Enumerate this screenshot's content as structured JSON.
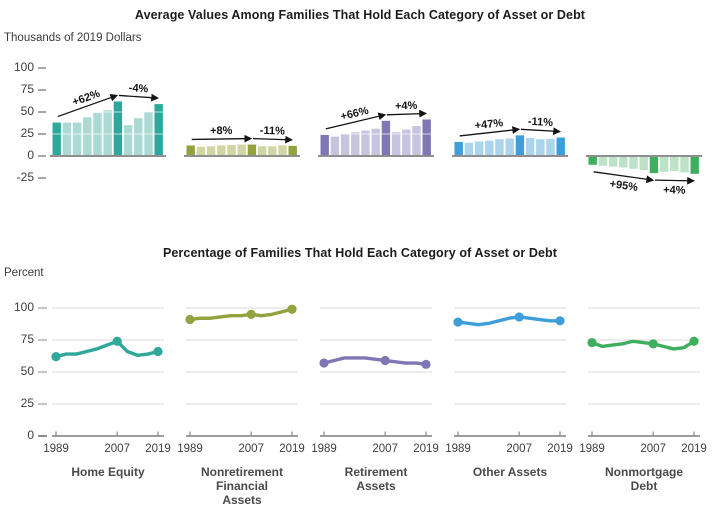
{
  "accent_colors": {
    "teal": "#2fa79b",
    "teal_light": "#abd9d3",
    "olive": "#93a13f",
    "olive_light": "#cfd6a2",
    "purple": "#7f77b5",
    "purple_light": "#c7c4e0",
    "blue": "#3e9ed9",
    "blue_light": "#abd4ed",
    "green": "#3eaf5e",
    "green_light": "#bce2c8",
    "axis_gray": "#8f8f8f",
    "grid_gray": "#d9d9d9",
    "text_dark": "#1c1c1c"
  },
  "category_labels": [
    "Home Equity",
    "Nonretirement\nFinancial\nAssets",
    "Retirement\nAssets",
    "Other Assets",
    "Nonmortgage\nDebt"
  ],
  "chart_data": [
    {
      "type": "bar",
      "title": "Average Values Among Families That Hold Each Category of Asset or Debt",
      "ylabel": "Thousands of 2019 Dollars",
      "ylim": [
        -25,
        100
      ],
      "y_ticks": [
        100,
        75,
        50,
        25,
        0,
        -25
      ],
      "grid": "off",
      "x": [
        1989,
        1992,
        1995,
        1998,
        2001,
        2004,
        2007,
        2010,
        2013,
        2016,
        2019
      ],
      "highlight_years": [
        1989,
        2007,
        2019
      ],
      "series": [
        {
          "name": "Home Equity",
          "color": "#2fa79b",
          "color_light": "#abd9d3",
          "values": [
            38,
            38,
            38,
            44,
            49,
            52,
            62,
            35,
            43,
            50,
            59
          ],
          "annotations": [
            {
              "label": "+62%",
              "from": 1989,
              "to": 2007
            },
            {
              "label": "-4%",
              "from": 2007,
              "to": 2019
            }
          ]
        },
        {
          "name": "Nonretirement Financial Assets",
          "color": "#93a13f",
          "color_light": "#cfd6a2",
          "values": [
            12,
            10.5,
            11,
            12,
            12.5,
            13,
            13,
            11,
            11,
            12,
            11.5
          ],
          "annotations": [
            {
              "label": "+8%",
              "from": 1989,
              "to": 2007
            },
            {
              "label": "-11%",
              "from": 2007,
              "to": 2019
            }
          ]
        },
        {
          "name": "Retirement Assets",
          "color": "#7f77b5",
          "color_light": "#c7c4e0",
          "values": [
            24,
            22,
            25,
            27,
            29,
            31,
            40,
            27,
            30,
            34,
            41.5
          ],
          "annotations": [
            {
              "label": "+66%",
              "from": 1989,
              "to": 2007
            },
            {
              "label": "+4%",
              "from": 2007,
              "to": 2019
            }
          ]
        },
        {
          "name": "Other Assets",
          "color": "#3e9ed9",
          "color_light": "#abd4ed",
          "values": [
            16,
            15,
            16.5,
            17.5,
            19,
            20,
            23.5,
            20.5,
            19,
            19.5,
            21
          ],
          "annotations": [
            {
              "label": "+47%",
              "from": 1989,
              "to": 2007
            },
            {
              "label": "-11%",
              "from": 2007,
              "to": 2019
            }
          ]
        },
        {
          "name": "Nonmortgage Debt",
          "color": "#3eaf5e",
          "color_light": "#bce2c8",
          "values": [
            -10,
            -11,
            -12,
            -13,
            -14.5,
            -16,
            -19.5,
            -18,
            -17,
            -18.5,
            -20.3
          ],
          "annotations": [
            {
              "label": "+95%",
              "from": 1989,
              "to": 2007
            },
            {
              "label": "+4%",
              "from": 2007,
              "to": 2019
            }
          ]
        }
      ]
    },
    {
      "type": "line",
      "title": "Percentage of Families That Hold Each Category of Asset or Debt",
      "ylabel": "Percent",
      "ylim": [
        0,
        100
      ],
      "y_ticks": [
        100,
        75,
        50,
        25,
        0
      ],
      "grid": "on",
      "x": [
        1989,
        1992,
        1995,
        1998,
        2001,
        2004,
        2007,
        2010,
        2013,
        2016,
        2019
      ],
      "x_tick_labels": [
        "1989",
        "2007",
        "2019"
      ],
      "marker_years": [
        1989,
        2007,
        2019
      ],
      "series": [
        {
          "name": "Home Equity",
          "color": "#2fa79b",
          "values": [
            62,
            64,
            64,
            66,
            68,
            71,
            74,
            66,
            63,
            64,
            66
          ]
        },
        {
          "name": "Nonretirement Financial Assets",
          "color": "#93a13f",
          "values": [
            91,
            92,
            92,
            93,
            94,
            94,
            95,
            94,
            95,
            97,
            99
          ]
        },
        {
          "name": "Retirement Assets",
          "color": "#7f77b5",
          "values": [
            57,
            59,
            61,
            61,
            61,
            60,
            59,
            58,
            57,
            57,
            56
          ]
        },
        {
          "name": "Other Assets",
          "color": "#3e9ed9",
          "values": [
            89,
            88,
            87,
            88,
            90,
            92,
            93,
            92,
            91,
            90,
            90
          ]
        },
        {
          "name": "Nonmortgage Debt",
          "color": "#3eaf5e",
          "values": [
            73,
            70,
            71,
            72,
            74,
            73,
            72,
            70,
            68,
            69,
            74
          ]
        }
      ]
    }
  ]
}
